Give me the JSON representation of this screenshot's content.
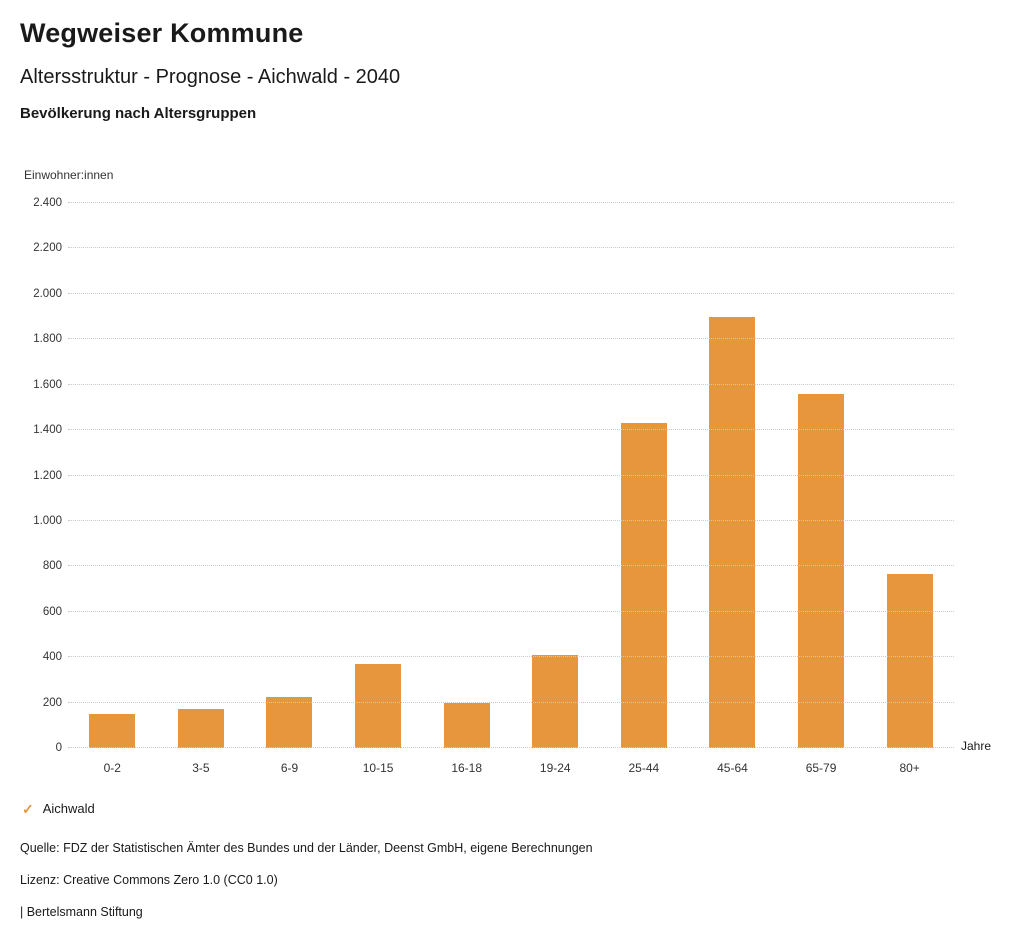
{
  "header": {
    "title": "Wegweiser Kommune",
    "subtitle": "Altersstruktur - Prognose - Aichwald - 2040",
    "chart_title": "Bevölkerung nach Altersgruppen"
  },
  "chart_data": {
    "type": "bar",
    "title": "Bevölkerung nach Altersgruppen",
    "ylabel": "Einwohner:innen",
    "xlabel": "Jahre",
    "categories": [
      "0-2",
      "3-5",
      "6-9",
      "10-15",
      "16-18",
      "19-24",
      "25-44",
      "45-64",
      "65-79",
      "80+"
    ],
    "series": [
      {
        "name": "Aichwald",
        "values": [
          150,
          170,
          225,
          370,
          200,
          410,
          1430,
          1900,
          1560,
          765
        ]
      }
    ],
    "ylim": [
      0,
      2400
    ],
    "yticks": [
      {
        "value": 0,
        "label": "0"
      },
      {
        "value": 200,
        "label": "200"
      },
      {
        "value": 400,
        "label": "400"
      },
      {
        "value": 600,
        "label": "600"
      },
      {
        "value": 800,
        "label": "800"
      },
      {
        "value": 1000,
        "label": "1.000"
      },
      {
        "value": 1200,
        "label": "1.200"
      },
      {
        "value": 1400,
        "label": "1.400"
      },
      {
        "value": 1600,
        "label": "1.600"
      },
      {
        "value": 1800,
        "label": "1.800"
      },
      {
        "value": 2000,
        "label": "2.000"
      },
      {
        "value": 2200,
        "label": "2.200"
      },
      {
        "value": 2400,
        "label": "2.400"
      }
    ],
    "grid": "horizontal-dotted",
    "legend_position": "bottom-left"
  },
  "legend": {
    "items": [
      {
        "label": "Aichwald",
        "color": "#e8963d",
        "marker": "check"
      }
    ]
  },
  "footer": {
    "source": "Quelle: FDZ der Statistischen Ämter des Bundes und der Länder, Deenst GmbH, eigene Berechnungen",
    "license": "Lizenz: Creative Commons Zero 1.0 (CC0 1.0)",
    "attribution": "| Bertelsmann Stiftung"
  },
  "colors": {
    "bar": "#e8963d",
    "grid": "#c9c9c9",
    "text": "#1a1a1a"
  }
}
